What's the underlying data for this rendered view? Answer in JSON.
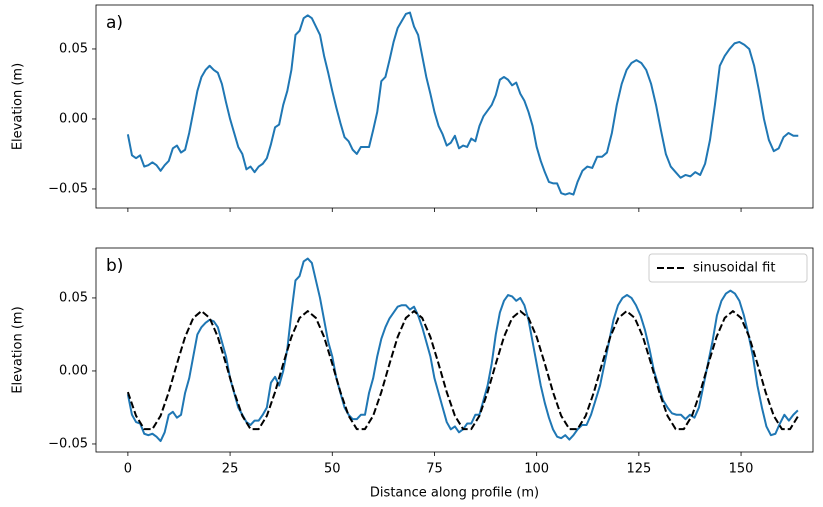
{
  "chart_data": [
    {
      "type": "line",
      "annotation": "a)",
      "ylabel": "Elevation (m)",
      "show_xtick_labels": false,
      "xlim": [
        -7.8,
        167.6
      ],
      "xticks": [
        0,
        25,
        50,
        75,
        100,
        125,
        150
      ],
      "ylim": [
        -0.0636,
        0.0814
      ],
      "yticks": [
        {
          "value": -0.05,
          "label": "−0.05"
        },
        {
          "value": 0,
          "label": "0.00"
        },
        0.05
      ],
      "series": [
        {
          "color": "#1f77b4",
          "linestyle": "solid",
          "x": [
            0,
            1,
            2,
            3,
            4,
            5,
            6,
            7,
            8,
            9,
            10,
            11,
            12,
            13,
            14,
            15,
            16,
            17,
            18,
            19,
            20,
            21,
            22,
            23,
            24,
            25,
            26,
            27,
            28,
            29,
            30,
            31,
            32,
            33,
            34,
            35,
            36,
            37,
            38,
            39,
            40,
            41,
            42,
            43,
            44,
            45,
            46,
            47,
            48,
            49,
            50,
            51,
            52,
            53,
            54,
            55,
            56,
            57,
            58,
            59,
            60,
            61,
            62,
            63,
            64,
            65,
            66,
            67,
            68,
            69,
            70,
            71,
            72,
            73,
            74,
            75,
            76,
            77,
            78,
            79,
            80,
            81,
            82,
            83,
            84,
            85,
            86,
            87,
            88,
            89,
            90,
            91,
            92,
            93,
            94,
            95,
            96,
            97,
            98,
            99,
            100,
            101,
            102,
            103,
            104,
            105,
            106,
            107,
            108,
            109,
            110,
            111.2,
            112.4,
            113.6,
            114.8,
            116,
            117.2,
            118.4,
            119.6,
            120.8,
            122,
            123.2,
            124.4,
            125.6,
            126.8,
            128,
            129.2,
            130.4,
            131.6,
            132.8,
            134,
            135.2,
            136.4,
            137.6,
            138.8,
            140,
            141.2,
            142.4,
            143.6,
            144.8,
            146,
            147.2,
            148.4,
            149.6,
            150.8,
            152,
            153.2,
            154.4,
            155.6,
            156.8,
            158,
            159.2,
            160.4,
            161.6,
            162.8,
            164
          ],
          "values": [
            -0.011,
            -0.026,
            -0.028,
            -0.026,
            -0.034,
            -0.033,
            -0.031,
            -0.033,
            -0.037,
            -0.033,
            -0.03,
            -0.021,
            -0.019,
            -0.024,
            -0.022,
            -0.01,
            0.005,
            0.02,
            0.03,
            0.035,
            0.038,
            0.035,
            0.033,
            0.025,
            0.012,
            0.0,
            -0.01,
            -0.02,
            -0.025,
            -0.036,
            -0.034,
            -0.038,
            -0.034,
            -0.032,
            -0.028,
            -0.018,
            -0.006,
            -0.004,
            0.01,
            0.02,
            0.035,
            0.06,
            0.063,
            0.072,
            0.074,
            0.072,
            0.066,
            0.06,
            0.045,
            0.033,
            0.02,
            0.008,
            -0.003,
            -0.013,
            -0.016,
            -0.022,
            -0.025,
            -0.02,
            -0.02,
            -0.02,
            -0.008,
            0.005,
            0.027,
            0.03,
            0.042,
            0.055,
            0.065,
            0.07,
            0.075,
            0.076,
            0.066,
            0.06,
            0.045,
            0.03,
            0.018,
            0.005,
            -0.005,
            -0.011,
            -0.019,
            -0.017,
            -0.012,
            -0.021,
            -0.019,
            -0.02,
            -0.014,
            -0.016,
            -0.005,
            0.002,
            0.006,
            0.01,
            0.017,
            0.028,
            0.03,
            0.028,
            0.024,
            0.026,
            0.018,
            0.013,
            0.005,
            -0.005,
            -0.02,
            -0.03,
            -0.038,
            -0.045,
            -0.046,
            -0.046,
            -0.053,
            -0.054,
            -0.053,
            -0.054,
            -0.045,
            -0.037,
            -0.034,
            -0.035,
            -0.027,
            -0.027,
            -0.024,
            -0.01,
            0.01,
            0.025,
            0.035,
            0.04,
            0.042,
            0.04,
            0.035,
            0.025,
            0.01,
            -0.008,
            -0.025,
            -0.034,
            -0.038,
            -0.042,
            -0.04,
            -0.041,
            -0.038,
            -0.04,
            -0.032,
            -0.015,
            0.01,
            0.038,
            0.045,
            0.05,
            0.054,
            0.055,
            0.053,
            0.05,
            0.038,
            0.02,
            0.0,
            -0.015,
            -0.023,
            -0.021,
            -0.013,
            -0.01,
            -0.012,
            -0.012
          ]
        }
      ]
    },
    {
      "type": "line",
      "annotation": "b)",
      "ylabel": "Elevation (m)",
      "xlabel": "Distance along profile (m)",
      "show_xtick_labels": true,
      "legend": "upper right",
      "xlim": [
        -7.8,
        167.6
      ],
      "xticks": [
        0,
        25,
        50,
        75,
        100,
        125,
        150
      ],
      "ylim": [
        -0.0555,
        0.0842
      ],
      "yticks": [
        {
          "value": -0.05,
          "label": "−0.05"
        },
        {
          "value": 0,
          "label": "0.00"
        },
        0.05
      ],
      "series": [
        {
          "color": "#1f77b4",
          "linestyle": "solid",
          "x": [
            0,
            1,
            2,
            3,
            4,
            5,
            6,
            7,
            8,
            9,
            10,
            11,
            12,
            13,
            14,
            15,
            16,
            17,
            18,
            19,
            20,
            21,
            22,
            23,
            24,
            25,
            26,
            27,
            28,
            29,
            30,
            31,
            32,
            33,
            34,
            35,
            36,
            37,
            38,
            39,
            40,
            41,
            42,
            43,
            44,
            45,
            46,
            47,
            48,
            49,
            50,
            51,
            52,
            53,
            54,
            55,
            56,
            57,
            58,
            59,
            60,
            61,
            62,
            63,
            64,
            65,
            66,
            67,
            68,
            69,
            70,
            71,
            72,
            73,
            74,
            75,
            76,
            77,
            78,
            79,
            80,
            81,
            82,
            83,
            84,
            85,
            86,
            87,
            88,
            89,
            90,
            91,
            92,
            93,
            94,
            95,
            96,
            97,
            98,
            99,
            100,
            101,
            102,
            103,
            104,
            105,
            106,
            107,
            108,
            109,
            110,
            111.1,
            112.2,
            113.3,
            114.4,
            115.5,
            116.6,
            117.7,
            118.8,
            119.9,
            121,
            122.1,
            123.2,
            124.3,
            125.4,
            126.5,
            127.6,
            128.7,
            129.8,
            130.9,
            132,
            133.1,
            134.2,
            135.3,
            136.4,
            137.5,
            138.6,
            139.7,
            140.8,
            141.9,
            143,
            144.1,
            145.2,
            146.3,
            147.4,
            148.5,
            149.6,
            150.7,
            151.8,
            152.9,
            154,
            155.1,
            156.2,
            157.3,
            158.4,
            159.5,
            160.6,
            161.7,
            162.8,
            163.9
          ],
          "values": [
            -0.016,
            -0.03,
            -0.035,
            -0.036,
            -0.043,
            -0.044,
            -0.043,
            -0.045,
            -0.048,
            -0.042,
            -0.03,
            -0.028,
            -0.032,
            -0.03,
            -0.015,
            -0.005,
            0.01,
            0.025,
            0.03,
            0.033,
            0.035,
            0.034,
            0.03,
            0.02,
            0.01,
            -0.005,
            -0.015,
            -0.025,
            -0.03,
            -0.035,
            -0.037,
            -0.034,
            -0.034,
            -0.03,
            -0.025,
            -0.008,
            -0.004,
            -0.01,
            0.0,
            0.015,
            0.04,
            0.062,
            0.065,
            0.075,
            0.077,
            0.074,
            0.062,
            0.05,
            0.035,
            0.02,
            0.01,
            -0.005,
            -0.015,
            -0.025,
            -0.03,
            -0.033,
            -0.033,
            -0.03,
            -0.03,
            -0.015,
            -0.005,
            0.01,
            0.022,
            0.03,
            0.036,
            0.04,
            0.044,
            0.045,
            0.045,
            0.042,
            0.044,
            0.038,
            0.03,
            0.02,
            0.01,
            -0.005,
            -0.015,
            -0.025,
            -0.035,
            -0.04,
            -0.038,
            -0.042,
            -0.04,
            -0.036,
            -0.036,
            -0.03,
            -0.03,
            -0.02,
            -0.01,
            0.005,
            0.025,
            0.04,
            0.048,
            0.052,
            0.051,
            0.048,
            0.05,
            0.045,
            0.035,
            0.02,
            0.005,
            -0.01,
            -0.022,
            -0.032,
            -0.04,
            -0.045,
            -0.046,
            -0.044,
            -0.047,
            -0.044,
            -0.04,
            -0.037,
            -0.037,
            -0.03,
            -0.02,
            -0.01,
            0.005,
            0.02,
            0.035,
            0.045,
            0.05,
            0.052,
            0.05,
            0.045,
            0.038,
            0.028,
            0.015,
            0.0,
            -0.01,
            -0.02,
            -0.025,
            -0.029,
            -0.03,
            -0.03,
            -0.033,
            -0.03,
            -0.032,
            -0.025,
            -0.01,
            0.005,
            0.02,
            0.038,
            0.048,
            0.053,
            0.055,
            0.053,
            0.048,
            0.038,
            0.025,
            0.01,
            -0.01,
            -0.025,
            -0.038,
            -0.044,
            -0.043,
            -0.036,
            -0.03,
            -0.034,
            -0.03,
            -0.027
          ]
        },
        {
          "name": "sinusoidal fit",
          "color": "#000000",
          "linestyle": "dashed",
          "x": [
            0,
            2,
            4,
            6,
            8,
            10,
            12,
            14,
            16,
            18,
            20,
            22,
            24,
            26,
            28,
            30,
            32,
            34,
            36,
            38,
            40,
            42,
            44,
            46,
            48,
            50,
            52,
            54,
            56,
            58,
            60,
            62,
            64,
            66,
            68,
            70,
            72,
            74,
            76,
            78,
            80,
            82,
            84,
            86,
            88,
            90,
            92,
            94,
            96,
            98,
            100,
            102,
            104,
            106,
            108,
            110,
            112,
            114,
            116,
            118,
            120,
            122,
            124,
            126,
            128,
            130,
            132,
            134,
            136,
            138,
            140,
            142,
            144,
            146,
            148,
            150,
            152,
            154,
            156,
            158,
            160,
            162,
            164
          ],
          "values": [
            -0.0145,
            -0.0307,
            -0.0398,
            -0.0398,
            -0.0307,
            -0.0145,
            0.0049,
            0.0233,
            0.0363,
            0.041,
            0.0363,
            0.0233,
            0.0049,
            -0.0145,
            -0.0307,
            -0.0398,
            -0.0398,
            -0.0307,
            -0.0145,
            0.0049,
            0.0233,
            0.0363,
            0.041,
            0.0363,
            0.0233,
            0.0049,
            -0.0145,
            -0.0307,
            -0.0398,
            -0.0398,
            -0.0307,
            -0.0145,
            0.0049,
            0.0233,
            0.0363,
            0.041,
            0.0363,
            0.0233,
            0.0049,
            -0.0145,
            -0.0307,
            -0.0398,
            -0.0398,
            -0.0307,
            -0.0145,
            0.0049,
            0.0233,
            0.0363,
            0.041,
            0.0363,
            0.0233,
            0.0049,
            -0.0145,
            -0.0307,
            -0.0398,
            -0.0398,
            -0.0307,
            -0.0145,
            0.0049,
            0.0233,
            0.0363,
            0.041,
            0.0363,
            0.0233,
            0.0049,
            -0.0145,
            -0.0307,
            -0.0398,
            -0.0398,
            -0.0307,
            -0.0145,
            0.0049,
            0.0233,
            0.0363,
            0.041,
            0.0363,
            0.0233,
            0.0049,
            -0.0145,
            -0.0307,
            -0.0398,
            -0.0398,
            -0.0307
          ]
        }
      ]
    }
  ]
}
